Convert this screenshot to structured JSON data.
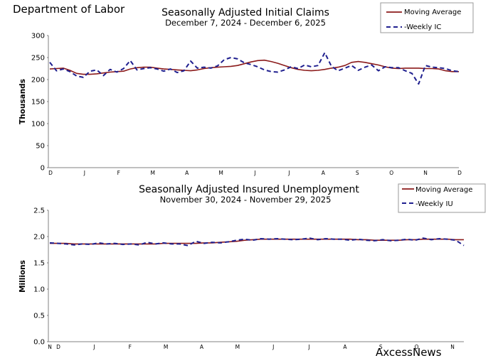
{
  "page": {
    "header": "Department of Labor",
    "watermark": "AxcessNews"
  },
  "colors": {
    "moving_average": "#8B1A1A",
    "weekly": "#1F1F8F",
    "axis": "#808080"
  },
  "chart_data": [
    {
      "type": "line",
      "title": "Seasonally Adjusted Initial Claims",
      "subtitle": "December 7, 2024 - December 6, 2025",
      "ylabel": "Thousands",
      "ylim": [
        0,
        300
      ],
      "yticks": [
        "0",
        "50",
        "100",
        "150",
        "200",
        "250",
        "300"
      ],
      "x_tick_labels": [
        "D",
        "J",
        "F",
        "M",
        "A",
        "M",
        "J",
        "J",
        "A",
        "S",
        "O",
        "N",
        "D"
      ],
      "grid": false,
      "legend_position": "top-right",
      "series": [
        {
          "name": "Moving Average",
          "style": "solid",
          "values": [
            224,
            225,
            226,
            221,
            214,
            212,
            212,
            213,
            215,
            217,
            218,
            219,
            224,
            227,
            228,
            228,
            226,
            224,
            223,
            222,
            221,
            220,
            222,
            225,
            227,
            228,
            229,
            230,
            232,
            236,
            240,
            243,
            244,
            241,
            237,
            232,
            227,
            223,
            221,
            220,
            221,
            223,
            226,
            228,
            232,
            239,
            241,
            239,
            236,
            233,
            229,
            226,
            225,
            226,
            226,
            226,
            225,
            225,
            224,
            220,
            218,
            218
          ]
        },
        {
          "name": "-Weekly IC",
          "style": "dashed",
          "values": [
            239,
            220,
            224,
            218,
            208,
            205,
            219,
            222,
            209,
            223,
            217,
            225,
            243,
            222,
            225,
            227,
            224,
            219,
            224,
            216,
            220,
            242,
            226,
            228,
            226,
            231,
            245,
            250,
            247,
            238,
            234,
            229,
            222,
            218,
            217,
            222,
            229,
            225,
            233,
            229,
            232,
            261,
            230,
            220,
            226,
            232,
            221,
            228,
            233,
            220,
            229,
            227,
            227,
            220,
            214,
            190,
            232,
            228,
            227,
            225,
            220,
            218
          ]
        }
      ]
    },
    {
      "type": "line",
      "title": "Seasonally Adjusted Insured Unemployment",
      "subtitle": "November 30, 2024 - November 29, 2025",
      "ylabel": "Millions",
      "ylim": [
        0.0,
        2.5
      ],
      "yticks": [
        "0.0",
        "0.5",
        "1.0",
        "1.5",
        "2.0",
        "2.5"
      ],
      "x_tick_labels": [
        "N",
        "D",
        "J",
        "F",
        "M",
        "A",
        "M",
        "J",
        "J",
        "A",
        "S",
        "O",
        "N"
      ],
      "grid": false,
      "legend_position": "top-right",
      "series": [
        {
          "name": "Moving Average",
          "style": "solid",
          "values": [
            1.87,
            1.87,
            1.87,
            1.86,
            1.86,
            1.86,
            1.86,
            1.86,
            1.86,
            1.86,
            1.86,
            1.86,
            1.86,
            1.86,
            1.87,
            1.87,
            1.87,
            1.87,
            1.87,
            1.88,
            1.88,
            1.89,
            1.9,
            1.91,
            1.93,
            1.94,
            1.95,
            1.95,
            1.95,
            1.95,
            1.95,
            1.95,
            1.95,
            1.95,
            1.95,
            1.95,
            1.95,
            1.95,
            1.94,
            1.94,
            1.93,
            1.93,
            1.93,
            1.93,
            1.94,
            1.94,
            1.95,
            1.95,
            1.95,
            1.95,
            1.94,
            1.94
          ]
        },
        {
          "name": "-Weekly IU",
          "style": "dashed",
          "values": [
            1.88,
            1.87,
            1.86,
            1.84,
            1.86,
            1.85,
            1.88,
            1.86,
            1.87,
            1.85,
            1.86,
            1.84,
            1.89,
            1.86,
            1.88,
            1.86,
            1.86,
            1.83,
            1.91,
            1.87,
            1.89,
            1.88,
            1.9,
            1.93,
            1.95,
            1.93,
            1.96,
            1.95,
            1.96,
            1.95,
            1.94,
            1.95,
            1.97,
            1.94,
            1.96,
            1.95,
            1.95,
            1.93,
            1.95,
            1.93,
            1.92,
            1.94,
            1.92,
            1.93,
            1.95,
            1.93,
            1.97,
            1.94,
            1.96,
            1.95,
            1.93,
            1.83
          ]
        }
      ]
    }
  ]
}
